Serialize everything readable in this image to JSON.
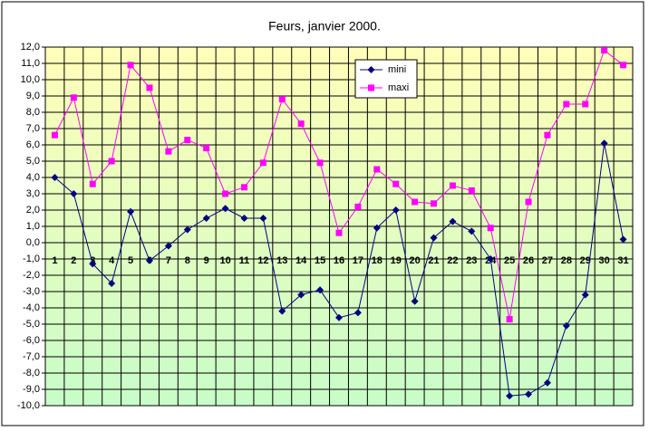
{
  "chart_data": {
    "type": "line",
    "title": "Feurs, janvier 2000.",
    "categories": [
      "1",
      "2",
      "3",
      "4",
      "5",
      "6",
      "7",
      "8",
      "9",
      "10",
      "11",
      "12",
      "13",
      "14",
      "15",
      "16",
      "17",
      "18",
      "19",
      "20",
      "21",
      "22",
      "23",
      "24",
      "25",
      "26",
      "27",
      "28",
      "29",
      "30",
      "31"
    ],
    "series": [
      {
        "name": "mini",
        "color": "#000080",
        "marker": "diamond",
        "values": [
          4.0,
          3.0,
          -1.3,
          -2.5,
          1.9,
          -1.1,
          -0.2,
          0.8,
          1.5,
          2.1,
          1.5,
          1.5,
          -4.2,
          -3.2,
          -2.9,
          -4.6,
          -4.3,
          0.9,
          2.0,
          -3.6,
          0.3,
          1.3,
          0.7,
          -1.0,
          -9.4,
          -9.3,
          -8.6,
          -5.1,
          -3.2,
          6.1,
          0.2
        ]
      },
      {
        "name": "maxi",
        "color": "#ff00ff",
        "marker": "square",
        "values": [
          6.6,
          8.9,
          3.6,
          5.0,
          10.9,
          9.5,
          5.6,
          6.3,
          5.8,
          3.0,
          3.4,
          4.9,
          8.8,
          7.3,
          4.9,
          0.6,
          2.2,
          4.5,
          3.6,
          2.5,
          2.4,
          3.5,
          3.2,
          0.9,
          -4.7,
          2.5,
          6.6,
          8.5,
          8.5,
          11.8,
          10.9
        ]
      }
    ],
    "ylim": [
      -10,
      12
    ],
    "yticks": [
      {
        "value": 12,
        "label": "12,0"
      },
      {
        "value": 11,
        "label": "11,0"
      },
      {
        "value": 10,
        "label": "10,0"
      },
      {
        "value": 9,
        "label": "9,0"
      },
      {
        "value": 8,
        "label": "8,0"
      },
      {
        "value": 7,
        "label": "7,0"
      },
      {
        "value": 6,
        "label": "6,0"
      },
      {
        "value": 5,
        "label": "5,0"
      },
      {
        "value": 4,
        "label": "4,0"
      },
      {
        "value": 3,
        "label": "3,0"
      },
      {
        "value": 2,
        "label": "2,0"
      },
      {
        "value": 1,
        "label": "1,0"
      },
      {
        "value": 0,
        "label": "0,0"
      },
      {
        "value": -1,
        "label": "-1,0"
      },
      {
        "value": -2,
        "label": "-2,0"
      },
      {
        "value": -3,
        "label": "-3,0"
      },
      {
        "value": -4,
        "label": "-4,0"
      },
      {
        "value": -5,
        "label": "-5,0"
      },
      {
        "value": -6,
        "label": "-6,0"
      },
      {
        "value": -7,
        "label": "-7,0"
      },
      {
        "value": -8,
        "label": "-8,0"
      },
      {
        "value": -9,
        "label": "-9,0"
      },
      {
        "value": -10,
        "label": "-10,0"
      }
    ],
    "grid": true
  }
}
